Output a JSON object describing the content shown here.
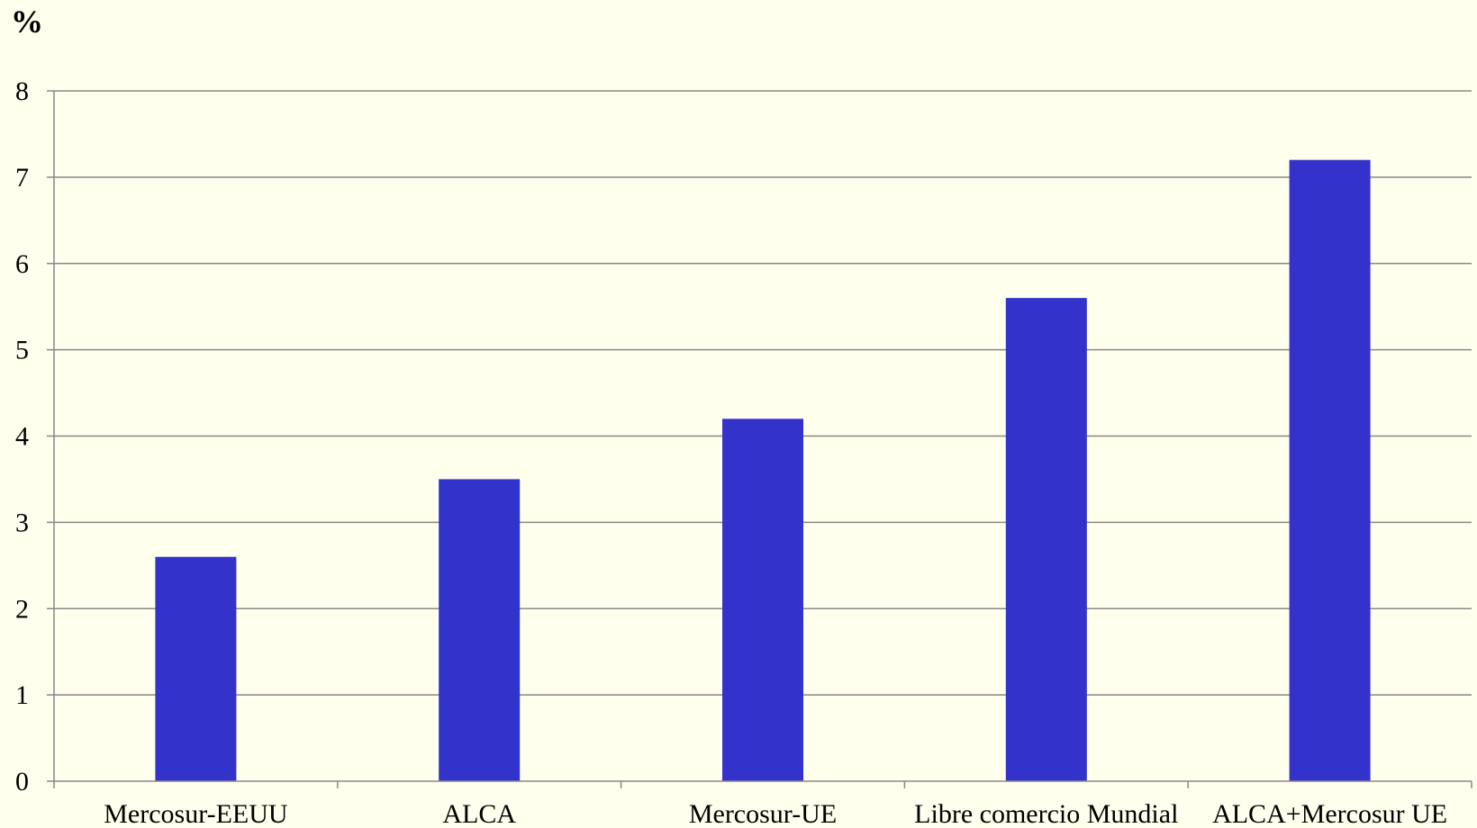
{
  "chart_data": {
    "type": "bar",
    "title": "",
    "xlabel": "",
    "ylabel": "%",
    "categories": [
      "Mercosur-EEUU",
      "ALCA",
      "Mercosur-UE",
      "Libre comercio Mundial",
      "ALCA+Mercosur UE"
    ],
    "values": [
      2.6,
      3.5,
      4.2,
      5.6,
      7.2
    ],
    "ylim": [
      0,
      8
    ],
    "yticks": [
      "0",
      "1",
      "2",
      "3",
      "4",
      "5",
      "6",
      "7",
      "8"
    ],
    "grid": true,
    "legend": "none",
    "colors": {
      "bar": "#3333CC",
      "gridline": "#888888",
      "axis": "#888888",
      "background": "#FFFFEE",
      "text": "#000000"
    }
  }
}
